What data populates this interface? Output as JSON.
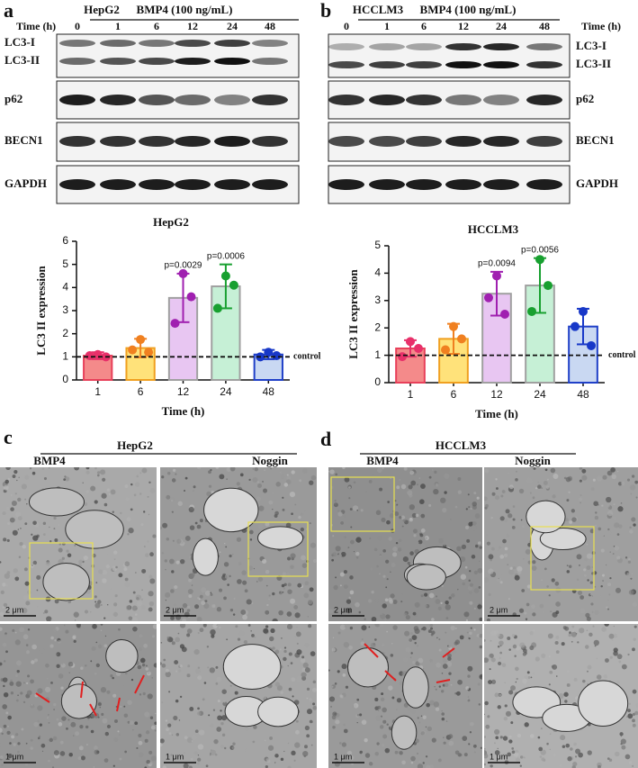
{
  "panel_labels": [
    "a",
    "b",
    "c",
    "d"
  ],
  "blots": [
    {
      "cell_line": "HepG2",
      "treatment": "BMP4 (100 ng/mL)",
      "time_label": "Time (h)",
      "lanes": [
        "0",
        "1",
        "6",
        "12",
        "24",
        "48"
      ],
      "rows": [
        "LC3-I",
        "LC3-II",
        "p62",
        "BECN1",
        "GAPDH"
      ]
    },
    {
      "cell_line": "HCCLM3",
      "treatment": "BMP4 (100 ng/mL)",
      "time_label": "Time (h)",
      "lanes": [
        "0",
        "1",
        "6",
        "12",
        "24",
        "48"
      ],
      "rows": [
        "LC3-I",
        "LC3-II",
        "p62",
        "BECN1",
        "GAPDH"
      ]
    }
  ],
  "chart_data": [
    {
      "type": "bar",
      "title": "HepG2",
      "x_label": "Time (h)",
      "y_label": "LC3 II expression",
      "categories": [
        "1",
        "6",
        "12",
        "24",
        "48"
      ],
      "values": [
        1.05,
        1.38,
        3.55,
        4.05,
        1.1
      ],
      "errors": [
        0.15,
        0.4,
        1.05,
        0.95,
        0.2
      ],
      "points": [
        [
          1.1,
          1.0,
          1.05
        ],
        [
          1.75,
          1.2,
          1.3
        ],
        [
          4.6,
          3.6,
          2.45
        ],
        [
          4.5,
          4.1,
          3.1
        ],
        [
          1.2,
          1.05,
          1.0
        ]
      ],
      "value_annotations": [
        null,
        null,
        "p=0.0029",
        "p=0.0006",
        null
      ],
      "bar_colors": [
        "#f48a8a",
        "#ffe27a",
        "#e8c6f2",
        "#c6f0d6",
        "#c9d8f2"
      ],
      "edge_colors": [
        "#e8405a",
        "#f0a020",
        "#a0a0a0",
        "#a0a0a0",
        "#2040c8"
      ],
      "point_colors": [
        "#e8306a",
        "#f08020",
        "#a020b0",
        "#18a030",
        "#1838c8"
      ],
      "ylim": [
        0,
        6
      ],
      "yticks": [
        0,
        1,
        2,
        3,
        4,
        5,
        6
      ],
      "reference_line": 1,
      "reference_label": "control"
    },
    {
      "type": "bar",
      "title": "HCCLM3",
      "x_label": "Time (h)",
      "y_label": "LC3 II expression",
      "categories": [
        "1",
        "6",
        "12",
        "24",
        "48"
      ],
      "values": [
        1.25,
        1.6,
        3.25,
        3.55,
        2.05
      ],
      "errors": [
        0.3,
        0.55,
        0.8,
        1.0,
        0.65
      ],
      "points": [
        [
          1.5,
          1.25,
          0.95
        ],
        [
          2.05,
          1.6,
          1.2
        ],
        [
          3.9,
          2.5,
          3.1
        ],
        [
          4.5,
          3.55,
          2.6
        ],
        [
          2.6,
          1.35,
          2.05
        ]
      ],
      "value_annotations": [
        null,
        null,
        "p=0.0094",
        "p=0.0056",
        null
      ],
      "bar_colors": [
        "#f48a8a",
        "#ffe27a",
        "#e8c6f2",
        "#c6f0d6",
        "#c9d8f2"
      ],
      "edge_colors": [
        "#e8405a",
        "#f0a020",
        "#a0a0a0",
        "#a0a0a0",
        "#2040c8"
      ],
      "point_colors": [
        "#e8306a",
        "#f08020",
        "#a020b0",
        "#18a030",
        "#1838c8"
      ],
      "ylim": [
        0,
        5
      ],
      "yticks": [
        0,
        1,
        2,
        3,
        4,
        5
      ],
      "reference_line": 1,
      "reference_label": "control"
    }
  ],
  "em": [
    {
      "cell_line": "HepG2",
      "conditions": [
        "BMP4",
        "Noggin"
      ],
      "scale_bars": [
        "2 μm",
        "2 μm",
        "1 μm",
        "1 μm"
      ]
    },
    {
      "cell_line": "HCCLM3",
      "conditions": [
        "BMP4",
        "Noggin"
      ],
      "scale_bars": [
        "2 μm",
        "2 μm",
        "1 μm",
        "1 μm"
      ]
    }
  ]
}
